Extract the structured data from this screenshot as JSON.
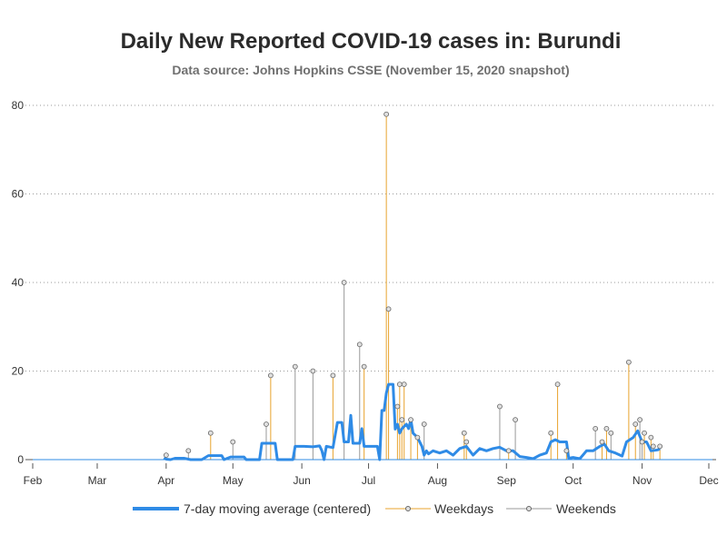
{
  "chart_data": {
    "type": "line",
    "title": "Daily New Reported COVID-19 cases in: Burundi",
    "subtitle": "Data source: Johns Hopkins CSSE (November 15, 2020 snapshot)",
    "xlabel": "",
    "ylabel": "",
    "x_ticks": [
      "Feb",
      "Mar",
      "Apr",
      "May",
      "Jun",
      "Jul",
      "Aug",
      "Sep",
      "Oct",
      "Nov",
      "Dec"
    ],
    "y_ticks": [
      0,
      20,
      40,
      60,
      80
    ],
    "ylim": [
      0,
      80
    ],
    "grid": true,
    "legend_position": "bottom",
    "colors": {
      "moving_average": "#2f8be6",
      "weekdays": "#e8a32d",
      "weekends": "#999999",
      "marker_fill": "#e0e0e0"
    },
    "series": [
      {
        "name": "7-day moving average (centered)",
        "points": [
          [
            "2020-03-31",
            0.4
          ],
          [
            "2020-04-01",
            0.1
          ],
          [
            "2020-04-03",
            0.0
          ],
          [
            "2020-04-05",
            0.3
          ],
          [
            "2020-04-09",
            0.3
          ],
          [
            "2020-04-12",
            0.0
          ],
          [
            "2020-04-17",
            0.0
          ],
          [
            "2020-04-20",
            0.9
          ],
          [
            "2020-04-26",
            0.9
          ],
          [
            "2020-04-27",
            0.0
          ],
          [
            "2020-04-30",
            0.6
          ],
          [
            "2020-05-06",
            0.6
          ],
          [
            "2020-05-07",
            0.0
          ],
          [
            "2020-05-13",
            0.0
          ],
          [
            "2020-05-14",
            3.7
          ],
          [
            "2020-05-20",
            3.7
          ],
          [
            "2020-05-21",
            0.0
          ],
          [
            "2020-05-28",
            0.0
          ],
          [
            "2020-05-29",
            3.0
          ],
          [
            "2020-06-02",
            3.0
          ],
          [
            "2020-06-06",
            2.9
          ],
          [
            "2020-06-09",
            3.1
          ],
          [
            "2020-06-10",
            2.0
          ],
          [
            "2020-06-11",
            0.0
          ],
          [
            "2020-06-12",
            3.0
          ],
          [
            "2020-06-15",
            2.7
          ],
          [
            "2020-06-17",
            8.4
          ],
          [
            "2020-06-19",
            8.4
          ],
          [
            "2020-06-20",
            4.0
          ],
          [
            "2020-06-22",
            4.0
          ],
          [
            "2020-06-23",
            10.0
          ],
          [
            "2020-06-24",
            3.7
          ],
          [
            "2020-06-27",
            3.7
          ],
          [
            "2020-06-28",
            7.0
          ],
          [
            "2020-06-29",
            3.0
          ],
          [
            "2020-07-05",
            3.0
          ],
          [
            "2020-07-06",
            0.0
          ],
          [
            "2020-07-07",
            11.1
          ],
          [
            "2020-07-08",
            11.1
          ],
          [
            "2020-07-09",
            15.0
          ],
          [
            "2020-07-10",
            17.0
          ],
          [
            "2020-07-12",
            17.0
          ],
          [
            "2020-07-13",
            6.9
          ],
          [
            "2020-07-14",
            8.0
          ],
          [
            "2020-07-15",
            6.0
          ],
          [
            "2020-07-16",
            7.0
          ],
          [
            "2020-07-17",
            7.5
          ],
          [
            "2020-07-18",
            8.0
          ],
          [
            "2020-07-19",
            7.0
          ],
          [
            "2020-07-20",
            9.0
          ],
          [
            "2020-07-21",
            6.0
          ],
          [
            "2020-07-23",
            5.0
          ],
          [
            "2020-07-25",
            3.0
          ],
          [
            "2020-07-26",
            1.0
          ],
          [
            "2020-07-27",
            2.0
          ],
          [
            "2020-07-28",
            1.3
          ],
          [
            "2020-07-30",
            2.0
          ],
          [
            "2020-08-02",
            1.5
          ],
          [
            "2020-08-05",
            2.0
          ],
          [
            "2020-08-08",
            1.0
          ],
          [
            "2020-08-11",
            2.5
          ],
          [
            "2020-08-14",
            3.0
          ],
          [
            "2020-08-17",
            1.0
          ],
          [
            "2020-08-20",
            2.5
          ],
          [
            "2020-08-23",
            2.0
          ],
          [
            "2020-08-26",
            2.5
          ],
          [
            "2020-08-29",
            2.8
          ],
          [
            "2020-09-01",
            2.0
          ],
          [
            "2020-09-04",
            2.0
          ],
          [
            "2020-09-07",
            0.7
          ],
          [
            "2020-09-10",
            0.5
          ],
          [
            "2020-09-13",
            0.2
          ],
          [
            "2020-09-16",
            1.0
          ],
          [
            "2020-09-19",
            1.5
          ],
          [
            "2020-09-21",
            4.0
          ],
          [
            "2020-09-23",
            4.5
          ],
          [
            "2020-09-25",
            4.0
          ],
          [
            "2020-09-28",
            4.0
          ],
          [
            "2020-09-29",
            0.3
          ],
          [
            "2020-10-01",
            0.5
          ],
          [
            "2020-10-04",
            0.2
          ],
          [
            "2020-10-07",
            2.0
          ],
          [
            "2020-10-10",
            2.0
          ],
          [
            "2020-10-13",
            3.0
          ],
          [
            "2020-10-15",
            3.5
          ],
          [
            "2020-10-17",
            2.0
          ],
          [
            "2020-10-20",
            1.5
          ],
          [
            "2020-10-23",
            0.8
          ],
          [
            "2020-10-25",
            4.0
          ],
          [
            "2020-10-28",
            5.0
          ],
          [
            "2020-10-30",
            6.5
          ],
          [
            "2020-11-01",
            4.0
          ],
          [
            "2020-11-03",
            4.0
          ],
          [
            "2020-11-05",
            2.0
          ],
          [
            "2020-11-08",
            2.2
          ],
          [
            "2020-11-09",
            2.5
          ]
        ]
      },
      {
        "name": "Weekdays",
        "points": [
          [
            "2020-04-21",
            6
          ],
          [
            "2020-05-18",
            19
          ],
          [
            "2020-06-15",
            19
          ],
          [
            "2020-06-29",
            21
          ],
          [
            "2020-07-09",
            78
          ],
          [
            "2020-07-10",
            34
          ],
          [
            "2020-07-14",
            12
          ],
          [
            "2020-07-15",
            17
          ],
          [
            "2020-07-16",
            9
          ],
          [
            "2020-07-17",
            17
          ],
          [
            "2020-07-20",
            9
          ],
          [
            "2020-07-23",
            5
          ],
          [
            "2020-08-13",
            6
          ],
          [
            "2020-08-14",
            4
          ],
          [
            "2020-09-02",
            2
          ],
          [
            "2020-09-21",
            6
          ],
          [
            "2020-09-24",
            17
          ],
          [
            "2020-09-28",
            2
          ],
          [
            "2020-10-14",
            4
          ],
          [
            "2020-10-16",
            7
          ],
          [
            "2020-10-26",
            22
          ],
          [
            "2020-10-29",
            8
          ],
          [
            "2020-11-02",
            6
          ],
          [
            "2020-11-05",
            5
          ],
          [
            "2020-11-06",
            3
          ],
          [
            "2020-11-09",
            3
          ]
        ]
      },
      {
        "name": "Weekends",
        "points": [
          [
            "2020-04-01",
            1
          ],
          [
            "2020-04-11",
            2
          ],
          [
            "2020-05-01",
            4
          ],
          [
            "2020-05-16",
            8
          ],
          [
            "2020-05-29",
            21
          ],
          [
            "2020-06-06",
            20
          ],
          [
            "2020-06-20",
            40
          ],
          [
            "2020-06-27",
            26
          ],
          [
            "2020-07-26",
            8
          ],
          [
            "2020-08-29",
            12
          ],
          [
            "2020-09-05",
            9
          ],
          [
            "2020-10-11",
            7
          ],
          [
            "2020-10-18",
            6
          ],
          [
            "2020-10-31",
            9
          ],
          [
            "2020-11-01",
            4
          ]
        ]
      }
    ]
  }
}
